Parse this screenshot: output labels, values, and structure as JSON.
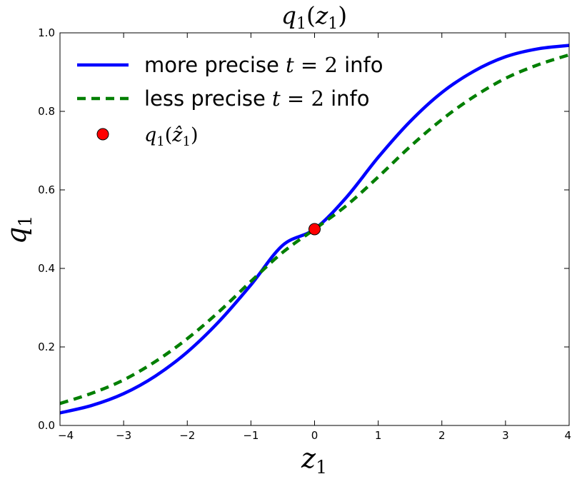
{
  "chart_data": {
    "type": "line",
    "title": {
      "base": "q",
      "sub": "1",
      "open": "(",
      "arg": "z",
      "argsub": "1",
      "close": ")"
    },
    "xlabel": {
      "base": "z",
      "sub": "1"
    },
    "ylabel": {
      "base": "q",
      "sub": "1"
    },
    "xlim": [
      -4,
      4
    ],
    "ylim": [
      0,
      1
    ],
    "xticks": [
      "−4",
      "−3",
      "−2",
      "−1",
      "0",
      "1",
      "2",
      "3",
      "4"
    ],
    "yticks": [
      "0.0",
      "0.2",
      "0.4",
      "0.6",
      "0.8",
      "1.0"
    ],
    "grid": false,
    "legend_position": "top-left",
    "x": [
      -4,
      -3.5,
      -3,
      -2.5,
      -2,
      -1.5,
      -1,
      -0.5,
      0,
      0.5,
      1,
      1.5,
      2,
      2.5,
      3,
      3.5,
      4
    ],
    "series": [
      {
        "legend_parts": [
          "more precise ",
          "t",
          " = 2",
          " info"
        ],
        "color": "#0000ff",
        "dash": "solid",
        "values": [
          0.032,
          0.051,
          0.081,
          0.126,
          0.187,
          0.265,
          0.358,
          0.459,
          0.5,
          0.581,
          0.683,
          0.774,
          0.848,
          0.902,
          0.939,
          0.959,
          0.968
        ]
      },
      {
        "legend_parts": [
          "less precise ",
          "t",
          " = 2",
          " info"
        ],
        "color": "#007f00",
        "dash": "dashed",
        "values": [
          0.056,
          0.082,
          0.116,
          0.163,
          0.221,
          0.29,
          0.367,
          0.441,
          0.5,
          0.56,
          0.633,
          0.71,
          0.779,
          0.837,
          0.884,
          0.918,
          0.944
        ]
      }
    ],
    "point": {
      "legend_parts": [
        "q",
        "1",
        "(",
        "ẑ",
        "1",
        ")"
      ],
      "x": 0,
      "y": 0.5,
      "color": "#ff0000"
    }
  }
}
